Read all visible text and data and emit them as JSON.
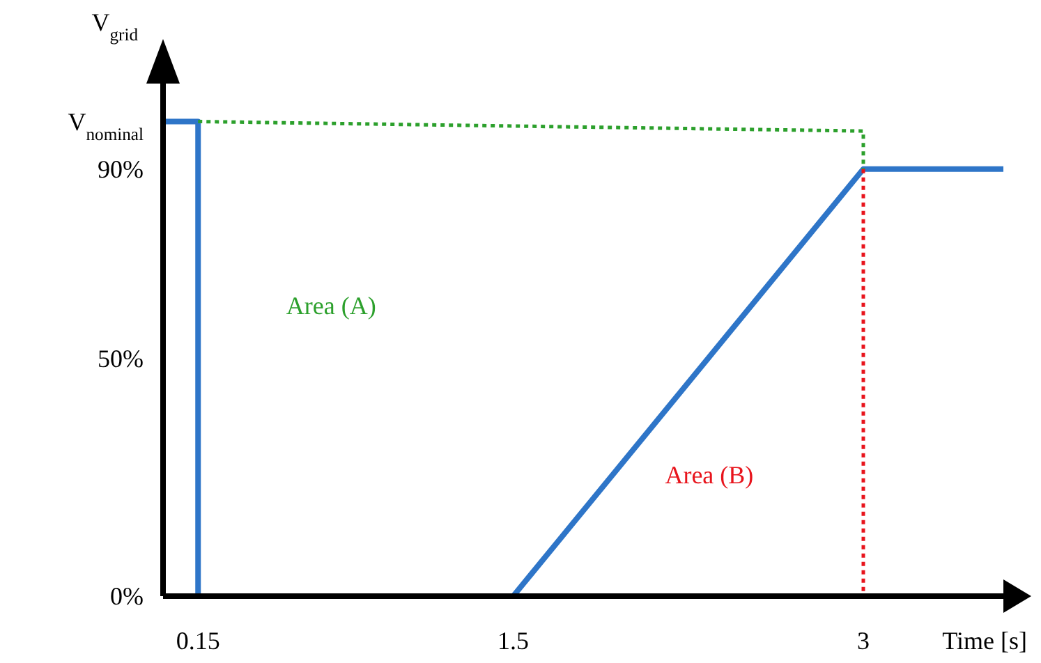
{
  "chart_data": {
    "type": "line",
    "xlabel": "Time [s]",
    "ylabel": "V$_{grid}$",
    "xlim": [
      0,
      3.6
    ],
    "ylim": [
      0,
      108
    ],
    "xticks": [
      0.15,
      1.5,
      3
    ],
    "yticks": [
      {
        "value": 0,
        "label": "0%"
      },
      {
        "value": 50,
        "label": "50%"
      },
      {
        "value": 90,
        "label": "90%"
      },
      {
        "value": 100,
        "label": "V$_{nominal}$"
      }
    ],
    "series": [
      {
        "color": "#2e75c8",
        "line_style": "solid",
        "x": [
          0,
          0.15,
          0.15,
          1.5,
          3,
          3.6
        ],
        "values": [
          100,
          100,
          0,
          0,
          90,
          90
        ]
      },
      {
        "color": "#2ca02c",
        "line_style": "dotted",
        "x": [
          0.15,
          3,
          3
        ],
        "values": [
          100,
          98,
          90
        ]
      },
      {
        "color": "#e8141c",
        "line_style": "dotted",
        "x": [
          3,
          3
        ],
        "values": [
          90,
          0
        ]
      }
    ],
    "annotations": [
      "Area (A)",
      "Area (B)"
    ]
  }
}
